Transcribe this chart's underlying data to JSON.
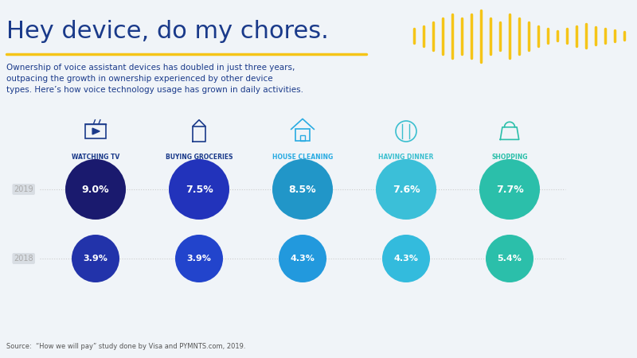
{
  "title": "Hey device, do my chores.",
  "subtitle": "Ownership of voice assistant devices has doubled in just three years,\noutpacing the growth in ownership experienced by other device\ntypes. Here’s how voice technology usage has grown in daily activities.",
  "source": "Source:  “How we will pay” study done by Visa and PYMNTS.com, 2019.",
  "categories": [
    "WATCHING TV",
    "BUYING GROCERIES",
    "HOUSE CLEANING",
    "HAVING DINNER",
    "SHOPPING"
  ],
  "values_2019": [
    9.0,
    7.5,
    8.5,
    7.6,
    7.7
  ],
  "values_2018": [
    3.9,
    3.9,
    4.3,
    4.3,
    5.4
  ],
  "circle_colors_2019": [
    "#1a1a6e",
    "#2233aa",
    "#2196c8",
    "#41bcd8",
    "#2bbfaa"
  ],
  "circle_colors_2018": [
    "#2233aa",
    "#2255cc",
    "#2299dd",
    "#33bbdd",
    "#2bbfaa"
  ],
  "category_colors": [
    "#1a3a8a",
    "#1a3a8a",
    "#29abe2",
    "#29abe2",
    "#29abe2"
  ],
  "title_color": "#1a3a8a",
  "subtitle_color": "#1a3a8a",
  "background_color": "#f0f4f8",
  "gold_line_color": "#f5c518",
  "year_label_color": "#aaaaaa",
  "dot_line_color": "#cccccc"
}
